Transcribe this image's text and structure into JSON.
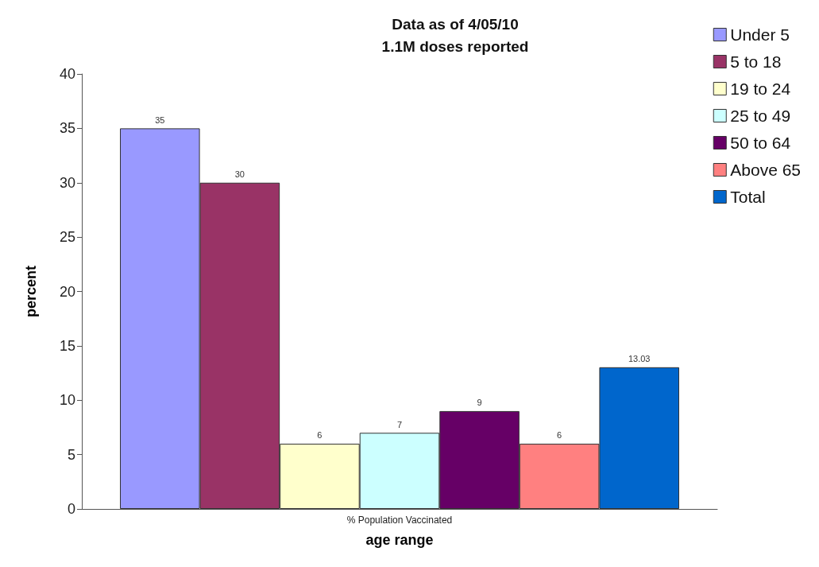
{
  "chart_data": {
    "type": "bar",
    "title": "Data as of 4/05/10",
    "subtitle": "1.1M doses reported",
    "xlabel": "age range",
    "ylabel": "percent",
    "categories": [
      "% Population Vaccinated"
    ],
    "series": [
      {
        "name": "Under 5",
        "color": "#9999ff",
        "values": [
          35
        ]
      },
      {
        "name": "5 to 18",
        "color": "#993366",
        "values": [
          30
        ]
      },
      {
        "name": "19 to 24",
        "color": "#ffffcc",
        "values": [
          6
        ]
      },
      {
        "name": "25 to 49",
        "color": "#ccffff",
        "values": [
          7
        ]
      },
      {
        "name": "50 to 64",
        "color": "#660066",
        "values": [
          9
        ]
      },
      {
        "name": "Above 65",
        "color": "#ff8080",
        "values": [
          6
        ]
      },
      {
        "name": "Total",
        "color": "#0066cc",
        "values": [
          13.03
        ]
      }
    ],
    "ylim": [
      0,
      40
    ],
    "yticks": [
      0,
      5,
      10,
      15,
      20,
      25,
      30,
      35,
      40
    ],
    "grid": false,
    "legend": "right",
    "data_labels": true
  }
}
